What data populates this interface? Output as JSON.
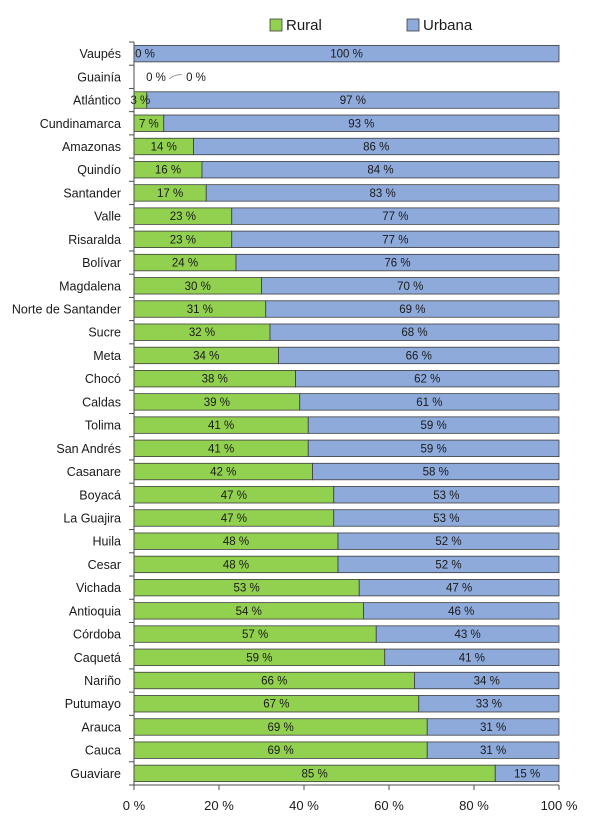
{
  "chart_data": {
    "type": "bar",
    "orientation": "horizontal",
    "stacked": true,
    "percent_stacked": true,
    "categories": [
      "Vaupés",
      "Guainía",
      "Atlántico",
      "Cundinamarca",
      "Amazonas",
      "Quindío",
      "Santander",
      "Valle",
      "Risaralda",
      "Bolívar",
      "Magdalena",
      "Norte de Santander",
      "Sucre",
      "Meta",
      "Chocó",
      "Caldas",
      "Tolima",
      "San Andrés",
      "Casanare",
      "Boyacá",
      "La Guajira",
      "Huila",
      "Cesar",
      "Vichada",
      "Antioquia",
      "Córdoba",
      "Caquetá",
      "Nariño",
      "Putumayo",
      "Arauca",
      "Cauca",
      "Guaviare"
    ],
    "series": [
      {
        "name": "Rural",
        "color": "#92d050",
        "values": [
          0,
          0,
          3,
          7,
          14,
          16,
          17,
          23,
          23,
          24,
          30,
          31,
          32,
          34,
          38,
          39,
          41,
          41,
          42,
          47,
          47,
          48,
          48,
          53,
          54,
          57,
          59,
          66,
          67,
          69,
          69,
          85
        ],
        "labels": [
          "0 %",
          "0 %",
          "3 %",
          "7 %",
          "14 %",
          "16 %",
          "17 %",
          "23 %",
          "23 %",
          "24 %",
          "30 %",
          "31 %",
          "32 %",
          "34 %",
          "38 %",
          "39 %",
          "41 %",
          "41 %",
          "42 %",
          "47 %",
          "47 %",
          "48 %",
          "48 %",
          "53 %",
          "54 %",
          "57 %",
          "59 %",
          "66 %",
          "67 %",
          "69 %",
          "69 %",
          "85 %"
        ]
      },
      {
        "name": "Urbana",
        "color": "#8eaadb",
        "values": [
          100,
          0,
          97,
          93,
          86,
          84,
          83,
          77,
          77,
          76,
          70,
          69,
          68,
          66,
          62,
          61,
          59,
          59,
          58,
          53,
          53,
          52,
          52,
          47,
          46,
          43,
          41,
          34,
          33,
          31,
          31,
          15
        ],
        "labels": [
          "100 %",
          "0 %",
          "97 %",
          "93 %",
          "86 %",
          "84 %",
          "83 %",
          "77 %",
          "77 %",
          "76 %",
          "70 %",
          "69 %",
          "68 %",
          "66 %",
          "62 %",
          "61 %",
          "59 %",
          "59 %",
          "58 %",
          "53 %",
          "53 %",
          "52 %",
          "52 %",
          "47 %",
          "46 %",
          "43 %",
          "41 %",
          "34 %",
          "33 %",
          "31 %",
          "31 %",
          "15 %"
        ]
      }
    ],
    "xlim": [
      0,
      100
    ],
    "xticks": [
      "0 %",
      "20 %",
      "40 %",
      "60 %",
      "80 %",
      "100 %"
    ],
    "title": "",
    "xlabel": "",
    "ylabel": "",
    "legend": "top",
    "grid": false
  }
}
